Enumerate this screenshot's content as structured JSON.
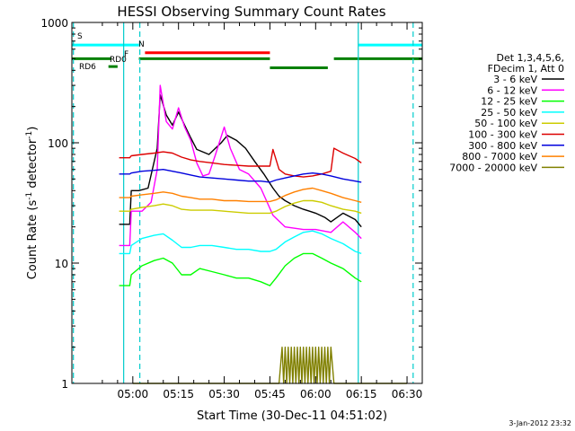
{
  "chart_data": {
    "type": "line",
    "title": "HESSI Observing Summary Count Rates",
    "xlabel": "Start Time (30-Dec-11 04:51:02)",
    "ylabel_main": "Count Rate (s",
    "ylabel_exp1": "-1",
    "ylabel_mid": " detector",
    "ylabel_exp2": "-1",
    "ylabel_end": ")",
    "yscale": "log",
    "ylim": [
      1,
      1000
    ],
    "xlim_minutes": [
      280,
      395
    ],
    "x_ticks": [
      "05:00",
      "05:15",
      "05:30",
      "05:45",
      "06:00",
      "06:15",
      "06:30"
    ],
    "x_tick_values": [
      300,
      315,
      330,
      345,
      360,
      375,
      390
    ],
    "y_ticks": [
      "1",
      "10",
      "100",
      "1000"
    ],
    "y_tick_values": [
      1,
      10,
      100,
      1000
    ],
    "legend_header": [
      "Det 1,3,4,5,6,",
      "FDecim 1, Att 0"
    ],
    "series": [
      {
        "name": "3 - 6 keV",
        "color": "#000000",
        "points": [
          [
            295.5,
            21
          ],
          [
            299,
            21
          ],
          [
            299.5,
            40
          ],
          [
            302,
            40
          ],
          [
            305,
            42
          ],
          [
            308,
            90
          ],
          [
            309,
            250
          ],
          [
            311,
            170
          ],
          [
            313,
            140
          ],
          [
            315,
            180
          ],
          [
            317,
            140
          ],
          [
            319,
            110
          ],
          [
            321,
            88
          ],
          [
            325,
            80
          ],
          [
            329,
            100
          ],
          [
            331,
            115
          ],
          [
            334,
            105
          ],
          [
            337,
            90
          ],
          [
            340,
            70
          ],
          [
            343,
            55
          ],
          [
            346,
            42
          ],
          [
            348,
            36
          ],
          [
            350,
            33
          ],
          [
            353,
            30
          ],
          [
            356,
            28
          ],
          [
            358,
            27
          ],
          [
            360,
            26
          ],
          [
            363,
            24
          ],
          [
            365,
            22
          ],
          [
            369,
            26
          ],
          [
            373,
            23
          ],
          [
            375,
            20
          ]
        ]
      },
      {
        "name": "6 - 12 keV",
        "color": "#ff00ff",
        "points": [
          [
            295.5,
            14
          ],
          [
            299,
            14
          ],
          [
            299.5,
            27
          ],
          [
            303,
            27
          ],
          [
            306,
            32
          ],
          [
            308,
            60
          ],
          [
            309,
            300
          ],
          [
            311,
            150
          ],
          [
            313,
            130
          ],
          [
            315,
            195
          ],
          [
            317,
            135
          ],
          [
            319,
            105
          ],
          [
            321,
            68
          ],
          [
            323,
            53
          ],
          [
            325,
            55
          ],
          [
            327,
            78
          ],
          [
            330,
            135
          ],
          [
            332,
            90
          ],
          [
            335,
            60
          ],
          [
            338,
            55
          ],
          [
            342,
            42
          ],
          [
            346,
            25
          ],
          [
            350,
            20
          ],
          [
            356,
            19
          ],
          [
            360,
            19
          ],
          [
            365,
            18
          ],
          [
            369,
            22
          ],
          [
            373,
            18
          ],
          [
            375,
            16
          ]
        ]
      },
      {
        "name": "12 - 25 keV",
        "color": "#00ff00",
        "points": [
          [
            295.5,
            6.5
          ],
          [
            299,
            6.5
          ],
          [
            299.5,
            8
          ],
          [
            303,
            9.5
          ],
          [
            307,
            10.5
          ],
          [
            310,
            11
          ],
          [
            313,
            10
          ],
          [
            316,
            8
          ],
          [
            319,
            8
          ],
          [
            322,
            9
          ],
          [
            326,
            8.5
          ],
          [
            330,
            8
          ],
          [
            334,
            7.5
          ],
          [
            338,
            7.5
          ],
          [
            342,
            7
          ],
          [
            345,
            6.5
          ],
          [
            347,
            7.5
          ],
          [
            350,
            9.5
          ],
          [
            353,
            11
          ],
          [
            356,
            12
          ],
          [
            359,
            12
          ],
          [
            362,
            11
          ],
          [
            365,
            10
          ],
          [
            369,
            9
          ],
          [
            373,
            7.5
          ],
          [
            375,
            7
          ]
        ]
      },
      {
        "name": "25 - 50 keV",
        "color": "#00ffff",
        "points": [
          [
            295.5,
            12
          ],
          [
            299,
            12
          ],
          [
            299.5,
            14
          ],
          [
            303,
            16
          ],
          [
            307,
            17
          ],
          [
            310,
            17.5
          ],
          [
            313,
            15.5
          ],
          [
            316,
            13.5
          ],
          [
            319,
            13.5
          ],
          [
            322,
            14
          ],
          [
            326,
            14
          ],
          [
            330,
            13.5
          ],
          [
            334,
            13
          ],
          [
            338,
            13
          ],
          [
            342,
            12.5
          ],
          [
            345,
            12.5
          ],
          [
            347,
            13
          ],
          [
            350,
            15
          ],
          [
            353,
            16.5
          ],
          [
            356,
            18
          ],
          [
            359,
            18.5
          ],
          [
            362,
            17.5
          ],
          [
            365,
            16
          ],
          [
            369,
            14.5
          ],
          [
            373,
            12.5
          ],
          [
            375,
            12
          ]
        ]
      },
      {
        "name": "50 - 100 keV",
        "color": "#cccc00",
        "points": [
          [
            295.5,
            27
          ],
          [
            299,
            27
          ],
          [
            299.5,
            28
          ],
          [
            303,
            29
          ],
          [
            307,
            30
          ],
          [
            310,
            31
          ],
          [
            313,
            30
          ],
          [
            316,
            28
          ],
          [
            319,
            27.5
          ],
          [
            322,
            27.5
          ],
          [
            326,
            27.5
          ],
          [
            330,
            27
          ],
          [
            334,
            26.5
          ],
          [
            338,
            26
          ],
          [
            342,
            26
          ],
          [
            345,
            26
          ],
          [
            347,
            27
          ],
          [
            350,
            29.5
          ],
          [
            353,
            31.5
          ],
          [
            356,
            33
          ],
          [
            359,
            33
          ],
          [
            362,
            32
          ],
          [
            365,
            30
          ],
          [
            369,
            28
          ],
          [
            373,
            27
          ],
          [
            375,
            26
          ]
        ]
      },
      {
        "name": "100 - 300 keV",
        "color": "#dd0000",
        "points": [
          [
            295.5,
            75
          ],
          [
            299,
            75
          ],
          [
            299.5,
            78
          ],
          [
            303,
            80
          ],
          [
            307,
            82
          ],
          [
            310,
            84
          ],
          [
            313,
            82
          ],
          [
            316,
            76
          ],
          [
            319,
            72
          ],
          [
            322,
            70
          ],
          [
            326,
            68
          ],
          [
            330,
            66
          ],
          [
            334,
            65
          ],
          [
            338,
            64
          ],
          [
            342,
            64
          ],
          [
            345,
            64
          ],
          [
            346,
            88
          ],
          [
            348,
            60
          ],
          [
            350,
            55
          ],
          [
            353,
            53
          ],
          [
            356,
            52
          ],
          [
            359,
            53
          ],
          [
            362,
            55
          ],
          [
            365,
            58
          ],
          [
            366,
            90
          ],
          [
            369,
            82
          ],
          [
            373,
            74
          ],
          [
            375,
            68
          ]
        ]
      },
      {
        "name": "300 - 800 keV",
        "color": "#0000dd",
        "points": [
          [
            295.5,
            55
          ],
          [
            299,
            55
          ],
          [
            299.5,
            56
          ],
          [
            303,
            58
          ],
          [
            307,
            59
          ],
          [
            310,
            60
          ],
          [
            313,
            58
          ],
          [
            316,
            56
          ],
          [
            319,
            54
          ],
          [
            322,
            52
          ],
          [
            326,
            51
          ],
          [
            330,
            50
          ],
          [
            334,
            49
          ],
          [
            338,
            48
          ],
          [
            342,
            48
          ],
          [
            345,
            47
          ],
          [
            347,
            49
          ],
          [
            350,
            51
          ],
          [
            353,
            53
          ],
          [
            356,
            55
          ],
          [
            359,
            56
          ],
          [
            362,
            55
          ],
          [
            365,
            53
          ],
          [
            369,
            50
          ],
          [
            373,
            48
          ],
          [
            375,
            47
          ]
        ]
      },
      {
        "name": "800 - 7000 keV",
        "color": "#ff8000",
        "points": [
          [
            295.5,
            35
          ],
          [
            299,
            35
          ],
          [
            299.5,
            36
          ],
          [
            303,
            37
          ],
          [
            307,
            38
          ],
          [
            310,
            39
          ],
          [
            313,
            38
          ],
          [
            316,
            36
          ],
          [
            319,
            35
          ],
          [
            322,
            34
          ],
          [
            326,
            34
          ],
          [
            330,
            33
          ],
          [
            334,
            33
          ],
          [
            338,
            32.5
          ],
          [
            342,
            32.5
          ],
          [
            345,
            32.5
          ],
          [
            347,
            33.5
          ],
          [
            350,
            36.5
          ],
          [
            353,
            39
          ],
          [
            356,
            41
          ],
          [
            359,
            42
          ],
          [
            362,
            40
          ],
          [
            365,
            38
          ],
          [
            369,
            35
          ],
          [
            373,
            33
          ],
          [
            375,
            32
          ]
        ]
      },
      {
        "name": "7000 - 20000 keV",
        "color": "#808000",
        "points": [
          [
            300,
            1
          ],
          [
            346,
            1
          ],
          [
            348,
            1
          ],
          [
            349,
            2
          ],
          [
            349.5,
            1
          ],
          [
            350,
            2
          ],
          [
            350.5,
            1
          ],
          [
            351,
            2
          ],
          [
            351.5,
            1
          ],
          [
            352,
            2
          ],
          [
            352.5,
            1
          ],
          [
            353,
            2
          ],
          [
            353.5,
            1
          ],
          [
            354,
            2
          ],
          [
            354.5,
            1
          ],
          [
            355,
            2
          ],
          [
            355.5,
            1
          ],
          [
            356,
            2
          ],
          [
            356.5,
            1
          ],
          [
            357,
            2
          ],
          [
            357.5,
            1
          ],
          [
            358,
            2
          ],
          [
            358.5,
            1
          ],
          [
            359,
            2
          ],
          [
            359.5,
            1
          ],
          [
            360,
            2
          ],
          [
            360.5,
            1
          ],
          [
            361,
            2
          ],
          [
            361.5,
            1
          ],
          [
            362,
            2
          ],
          [
            362.5,
            1
          ],
          [
            363,
            2
          ],
          [
            363.5,
            1
          ],
          [
            364,
            2
          ],
          [
            364.5,
            1
          ],
          [
            365,
            2
          ],
          [
            366,
            1
          ],
          [
            390,
            1
          ]
        ]
      }
    ],
    "flag_labels": [
      {
        "text": "S",
        "color": "#ff8000"
      },
      {
        "text": "N",
        "color": "#00ffff"
      },
      {
        "text": "F",
        "color": "#dd0000"
      },
      {
        "text": "RD0",
        "color": "#008000"
      },
      {
        "text": "RD6",
        "color": "#008000"
      }
    ],
    "flag_bars": [
      {
        "color": "#00ffff",
        "x0": 280,
        "x1": 302,
        "y": 650
      },
      {
        "color": "#00ffff",
        "x0": 374,
        "x1": 395,
        "y": 650
      },
      {
        "color": "#ff0000",
        "x0": 304,
        "x1": 345,
        "y": 560
      },
      {
        "color": "#008000",
        "x0": 280,
        "x1": 293,
        "y": 500
      },
      {
        "color": "#008000",
        "x0": 302,
        "x1": 345,
        "y": 500
      },
      {
        "color": "#008000",
        "x0": 345,
        "x1": 364,
        "y": 420
      },
      {
        "color": "#008000",
        "x0": 366,
        "x1": 395,
        "y": 500
      },
      {
        "color": "#008000",
        "x0": 292,
        "x1": 295,
        "y": 430
      }
    ],
    "vertical_markers": [
      {
        "x": 280.5,
        "style": "dashed",
        "color": "#00cccc"
      },
      {
        "x": 297,
        "style": "solid",
        "color": "#00cccc"
      },
      {
        "x": 302.3,
        "style": "dashed",
        "color": "#00cccc"
      },
      {
        "x": 374,
        "style": "solid",
        "color": "#00cccc"
      },
      {
        "x": 392,
        "style": "dashed",
        "color": "#00cccc"
      }
    ],
    "legend_placement": "right",
    "grid": false
  },
  "footer_date": "3-Jan-2012 23:32"
}
